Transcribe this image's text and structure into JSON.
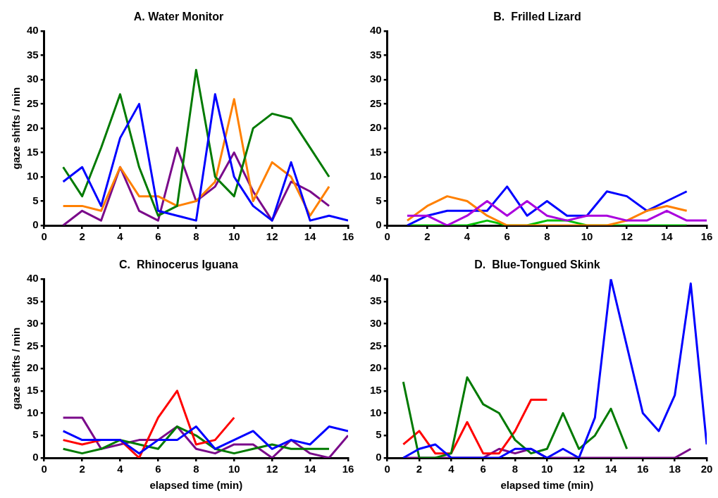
{
  "chart_data": [
    {
      "type": "line",
      "title": "A. Water Monitor",
      "ylabel": "gaze shifts / min",
      "xlim": [
        0,
        16
      ],
      "xticks": [
        0,
        2,
        4,
        6,
        8,
        10,
        12,
        14,
        16
      ],
      "ylim": [
        0,
        40
      ],
      "yticks": [
        0,
        5,
        10,
        15,
        20,
        25,
        30,
        35,
        40
      ],
      "grid": false,
      "legend": false,
      "marker": "none",
      "series": [
        {
          "color": "#0000ff",
          "x": [
            1,
            2,
            3,
            4,
            5,
            6,
            7,
            8,
            9,
            10,
            11,
            12,
            13,
            14,
            15,
            16
          ],
          "values": [
            9,
            12,
            4,
            18,
            25,
            3,
            2,
            1,
            27,
            10,
            4,
            1,
            13,
            1,
            2,
            1
          ]
        },
        {
          "color": "#007a00",
          "x": [
            1,
            2,
            3,
            4,
            5,
            6,
            7,
            8,
            9,
            10,
            11,
            12,
            13,
            14,
            15
          ],
          "values": [
            12,
            6,
            16,
            27,
            12,
            2,
            4,
            32,
            10,
            6,
            20,
            23,
            22,
            16,
            10
          ]
        },
        {
          "color": "#ff8000",
          "x": [
            1,
            2,
            3,
            4,
            5,
            6,
            7,
            8,
            9,
            10,
            11,
            12,
            13,
            14,
            15
          ],
          "values": [
            4,
            4,
            3,
            12,
            6,
            6,
            4,
            5,
            9,
            26,
            5,
            13,
            10,
            2,
            8
          ]
        },
        {
          "color": "#7a0a8a",
          "x": [
            1,
            2,
            3,
            4,
            5,
            6,
            7,
            8,
            9,
            10,
            11,
            12,
            13,
            14,
            15
          ],
          "values": [
            0,
            3,
            1,
            12,
            3,
            1,
            16,
            5,
            8,
            15,
            7,
            1,
            9,
            7,
            4
          ]
        }
      ]
    },
    {
      "type": "line",
      "title": "B.  Frilled Lizard",
      "xlim": [
        0,
        16
      ],
      "xticks": [
        0,
        2,
        4,
        6,
        8,
        10,
        12,
        14,
        16
      ],
      "ylim": [
        0,
        40
      ],
      "yticks": [
        0,
        5,
        10,
        15,
        20,
        25,
        30,
        35,
        40
      ],
      "grid": false,
      "legend": false,
      "marker": "none",
      "series": [
        {
          "color": "#aa00dd",
          "x": [
            1,
            2,
            3,
            4,
            5,
            6,
            7,
            8,
            9,
            10,
            11,
            12,
            13,
            14,
            15,
            16
          ],
          "values": [
            2,
            2,
            0,
            2,
            5,
            2,
            5,
            2,
            1,
            2,
            2,
            1,
            1,
            3,
            1,
            1
          ]
        },
        {
          "color": "#ff8000",
          "x": [
            1,
            2,
            3,
            4,
            5,
            6,
            7,
            8,
            9,
            10,
            11,
            12,
            13,
            14,
            15
          ],
          "values": [
            1,
            4,
            6,
            5,
            2,
            0,
            0,
            0,
            0,
            0,
            0,
            1,
            3,
            4,
            3
          ]
        },
        {
          "color": "#0000ff",
          "x": [
            1,
            2,
            3,
            4,
            5,
            6,
            7,
            8,
            9,
            10,
            11,
            12,
            13,
            14,
            15
          ],
          "values": [
            0,
            2,
            3,
            3,
            3,
            8,
            2,
            5,
            2,
            2,
            7,
            6,
            3,
            5,
            7
          ]
        },
        {
          "color": "#00c000",
          "x": [
            1,
            2,
            3,
            4,
            5,
            6,
            7,
            8,
            9,
            10,
            11,
            12,
            13,
            14,
            15
          ],
          "values": [
            0,
            0,
            0,
            0,
            1,
            0,
            0,
            1,
            1,
            0,
            0,
            0,
            0,
            0,
            0
          ]
        }
      ]
    },
    {
      "type": "line",
      "title": "C.  Rhinocerus Iguana",
      "ylabel": "gaze shifts / min",
      "xlabel": "elapsed time (min)",
      "xlim": [
        0,
        16
      ],
      "xticks": [
        0,
        2,
        4,
        6,
        8,
        10,
        12,
        14,
        16
      ],
      "ylim": [
        0,
        40
      ],
      "yticks": [
        0,
        5,
        10,
        15,
        20,
        25,
        30,
        35,
        40
      ],
      "grid": false,
      "legend": false,
      "marker": "none",
      "series": [
        {
          "color": "#0000ff",
          "x": [
            1,
            2,
            3,
            4,
            5,
            6,
            7,
            8,
            9,
            10,
            11,
            12,
            13,
            14,
            15,
            16
          ],
          "values": [
            6,
            4,
            4,
            4,
            1,
            4,
            4,
            7,
            2,
            4,
            6,
            2,
            4,
            3,
            7,
            6
          ]
        },
        {
          "color": "#ff0000",
          "x": [
            1,
            2,
            3,
            4,
            5,
            6,
            7,
            8,
            9,
            10
          ],
          "values": [
            4,
            3,
            4,
            4,
            0,
            9,
            15,
            3,
            4,
            9
          ]
        },
        {
          "color": "#007a00",
          "x": [
            1,
            2,
            3,
            4,
            5,
            6,
            7,
            8,
            9,
            10,
            11,
            12,
            13,
            14,
            15
          ],
          "values": [
            2,
            1,
            2,
            4,
            3,
            2,
            7,
            5,
            2,
            1,
            2,
            3,
            2,
            2,
            2
          ]
        },
        {
          "color": "#7a0a8a",
          "x": [
            1,
            2,
            3,
            4,
            5,
            6,
            7,
            8,
            9,
            10,
            11,
            12,
            13,
            14,
            15,
            16
          ],
          "values": [
            9,
            9,
            2,
            3,
            4,
            4,
            7,
            2,
            1,
            3,
            3,
            0,
            4,
            1,
            0,
            5
          ]
        }
      ]
    },
    {
      "type": "line",
      "title": "D.  Blue-Tongued Skink",
      "xlabel": "elapsed time (min)",
      "xlim": [
        0,
        20
      ],
      "xticks": [
        0,
        2,
        4,
        6,
        8,
        10,
        12,
        14,
        16,
        18,
        20
      ],
      "ylim": [
        0,
        40
      ],
      "yticks": [
        0,
        5,
        10,
        15,
        20,
        25,
        30,
        35,
        40
      ],
      "grid": false,
      "legend": false,
      "marker": "none",
      "series": [
        {
          "color": "#0000ff",
          "x": [
            1,
            2,
            3,
            4,
            5,
            6,
            7,
            8,
            9,
            10,
            11,
            12,
            13,
            14,
            15,
            16,
            17,
            18,
            19,
            20
          ],
          "values": [
            0,
            2,
            3,
            0,
            0,
            0,
            0,
            2,
            2,
            0,
            2,
            0,
            9,
            40,
            25,
            10,
            6,
            14,
            39,
            3
          ]
        },
        {
          "color": "#007a00",
          "x": [
            1,
            2,
            3,
            4,
            5,
            6,
            7,
            8,
            9,
            10,
            11,
            12,
            13,
            14,
            15
          ],
          "values": [
            17,
            0,
            0,
            1,
            18,
            12,
            10,
            4,
            1,
            2,
            10,
            2,
            5,
            11,
            2
          ]
        },
        {
          "color": "#ff0000",
          "x": [
            1,
            2,
            3,
            4,
            5,
            6,
            7,
            8,
            9,
            10
          ],
          "values": [
            3,
            6,
            1,
            1,
            8,
            1,
            1,
            6,
            13,
            13
          ]
        },
        {
          "color": "#7a0a8a",
          "x": [
            1,
            2,
            3,
            4,
            5,
            6,
            7,
            8,
            9,
            10,
            11,
            12,
            13,
            14,
            15,
            16,
            17,
            18,
            19
          ],
          "values": [
            0,
            0,
            0,
            0,
            0,
            0,
            2,
            1,
            2,
            0,
            0,
            0,
            0,
            0,
            0,
            0,
            0,
            0,
            2
          ]
        }
      ]
    }
  ]
}
